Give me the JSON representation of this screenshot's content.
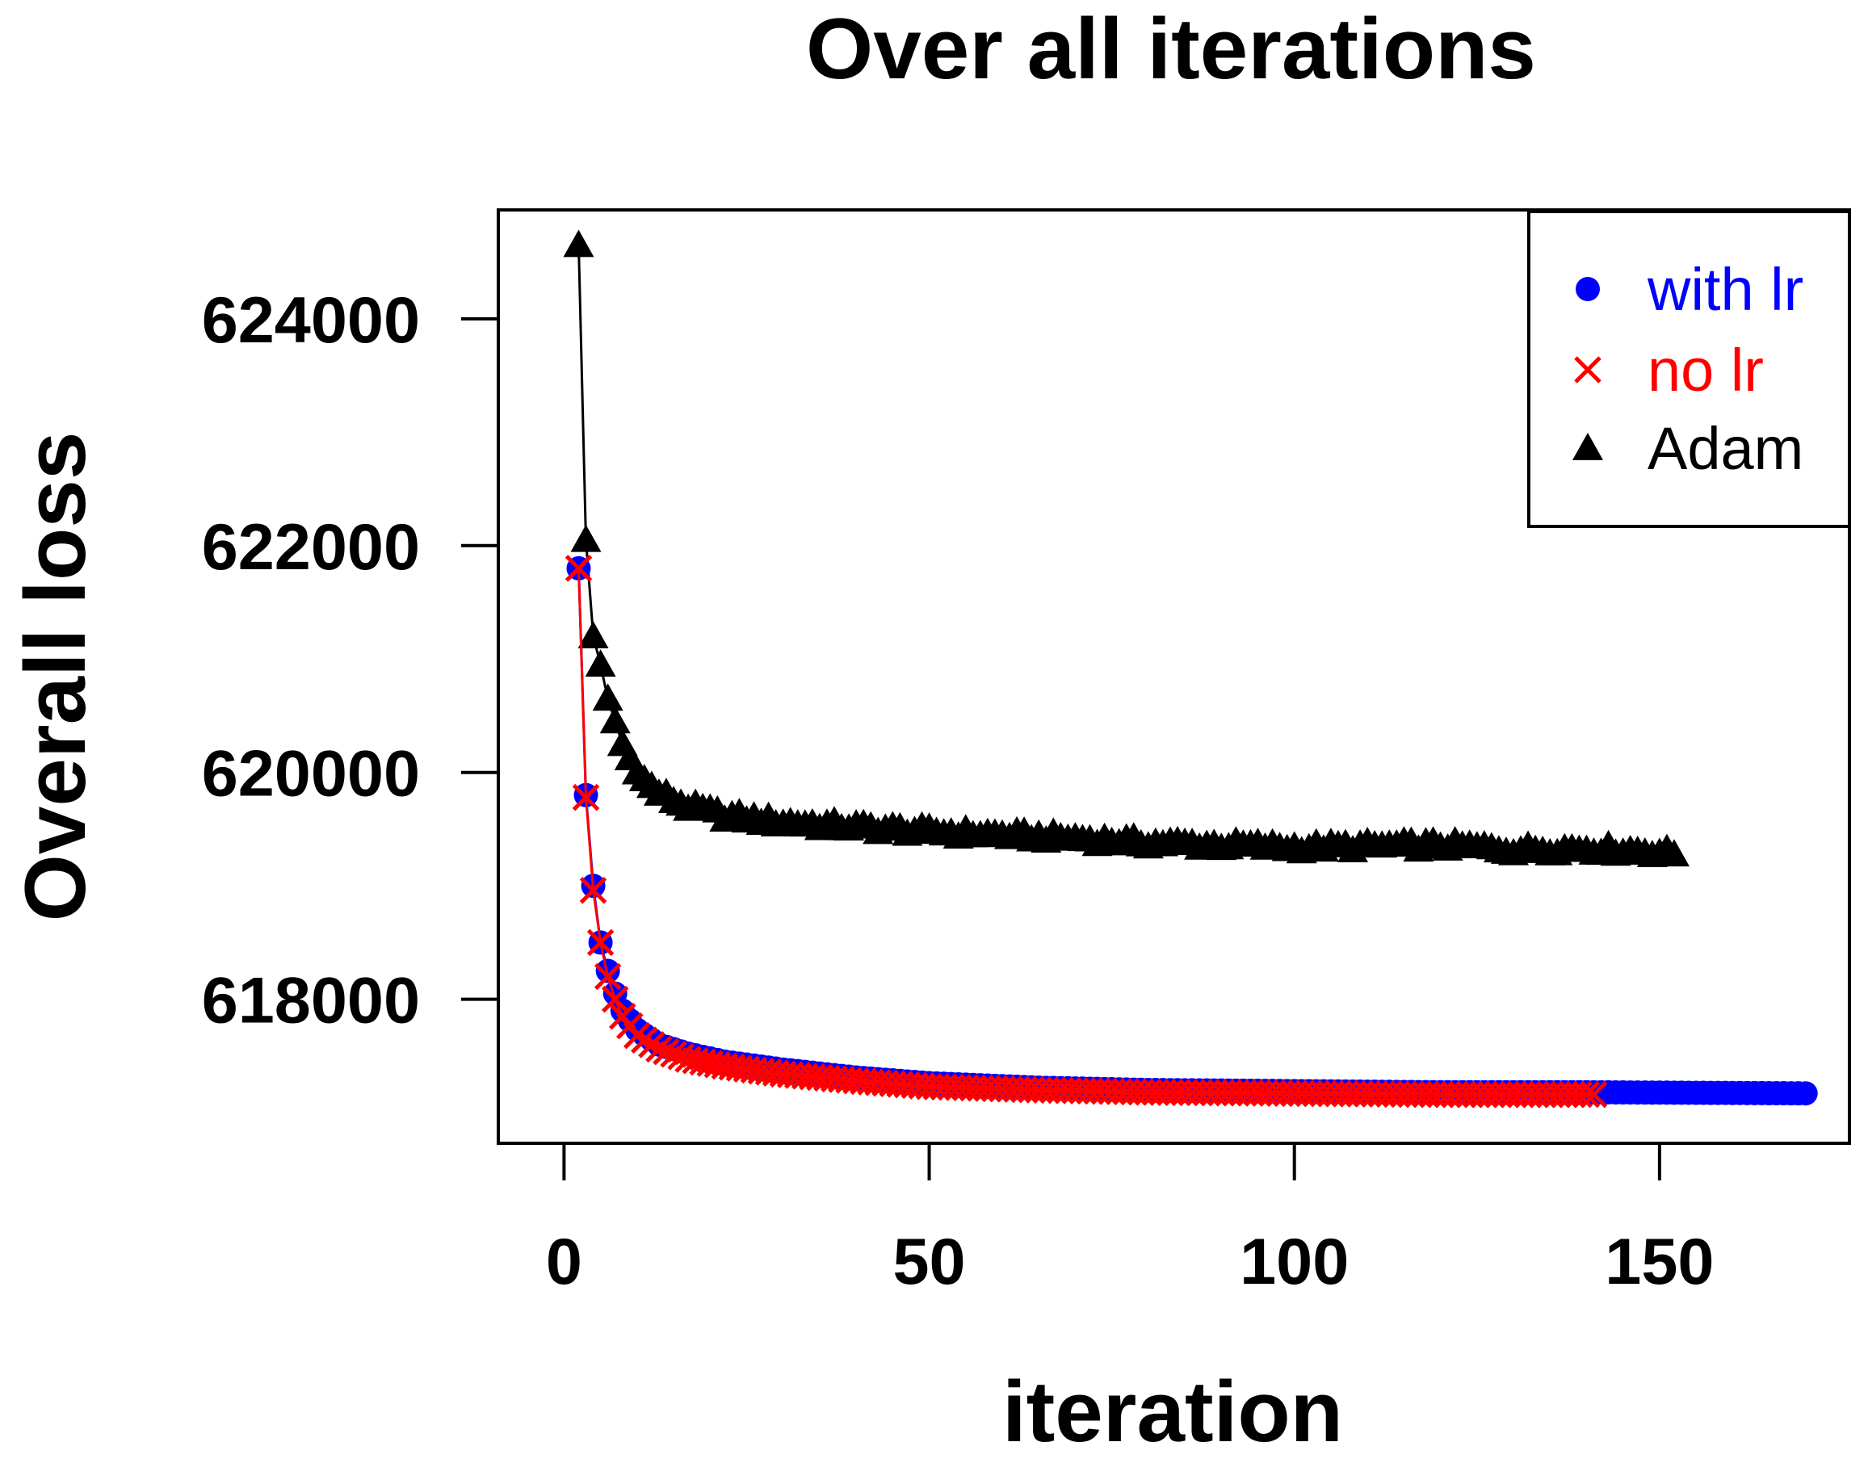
{
  "chart_data": {
    "type": "scatter",
    "title": "Over all iterations",
    "xlabel": "iteration",
    "ylabel": "Overall loss",
    "xlim": [
      -9,
      176
    ],
    "ylim": [
      616730,
      624960
    ],
    "x_ticks": [
      0,
      50,
      100,
      150
    ],
    "y_ticks": [
      618000,
      620000,
      622000,
      624000
    ],
    "x_tick_labels": [
      "0",
      "50",
      "100",
      "150"
    ],
    "y_tick_labels": [
      "618000",
      "620000",
      "622000",
      "624000"
    ],
    "grid": false,
    "legend_position": "top-right",
    "series": [
      {
        "name": "with lr",
        "marker": "circle",
        "color": "#0000ff",
        "line_color": "#0000ff",
        "x_start": 2,
        "x_end": 170,
        "anchors": [
          [
            2,
            621800
          ],
          [
            3,
            619800
          ],
          [
            4,
            619000
          ],
          [
            5,
            618500
          ],
          [
            6,
            618250
          ],
          [
            7,
            618050
          ],
          [
            8,
            617900
          ],
          [
            10,
            617730
          ],
          [
            13,
            617600
          ],
          [
            17,
            617520
          ],
          [
            22,
            617450
          ],
          [
            30,
            617380
          ],
          [
            40,
            617310
          ],
          [
            50,
            617260
          ],
          [
            65,
            617220
          ],
          [
            80,
            617200
          ],
          [
            100,
            617190
          ],
          [
            120,
            617180
          ],
          [
            140,
            617180
          ],
          [
            170,
            617170
          ]
        ]
      },
      {
        "name": "no lr",
        "marker": "x",
        "color": "#ff0000",
        "line_color": "#ff0000",
        "x_start": 2,
        "x_end": 141,
        "anchors": [
          [
            2,
            621800
          ],
          [
            3,
            619780
          ],
          [
            4,
            618960
          ],
          [
            5,
            618500
          ],
          [
            6,
            618200
          ],
          [
            7,
            618000
          ],
          [
            8,
            617850
          ],
          [
            10,
            617680
          ],
          [
            13,
            617560
          ],
          [
            17,
            617470
          ],
          [
            22,
            617410
          ],
          [
            30,
            617340
          ],
          [
            40,
            617280
          ],
          [
            50,
            617230
          ],
          [
            65,
            617200
          ],
          [
            80,
            617180
          ],
          [
            100,
            617170
          ],
          [
            120,
            617160
          ],
          [
            141,
            617160
          ]
        ]
      },
      {
        "name": "Adam",
        "marker": "triangle",
        "color": "#000000",
        "line_color": "#000000",
        "x_start": 2,
        "x_end": 152,
        "noise": 40,
        "anchors": [
          [
            2,
            624650
          ],
          [
            3,
            622050
          ],
          [
            4,
            621200
          ],
          [
            5,
            620950
          ],
          [
            6,
            620650
          ],
          [
            7,
            620450
          ],
          [
            8,
            620250
          ],
          [
            10,
            620000
          ],
          [
            13,
            619820
          ],
          [
            17,
            619700
          ],
          [
            22,
            619620
          ],
          [
            30,
            619560
          ],
          [
            40,
            619520
          ],
          [
            50,
            619480
          ],
          [
            60,
            619450
          ],
          [
            70,
            619420
          ],
          [
            80,
            619380
          ],
          [
            90,
            619360
          ],
          [
            100,
            619340
          ],
          [
            110,
            619350
          ],
          [
            120,
            619360
          ],
          [
            130,
            619320
          ],
          [
            140,
            619330
          ],
          [
            150,
            619300
          ],
          [
            152,
            619280
          ]
        ]
      }
    ]
  }
}
